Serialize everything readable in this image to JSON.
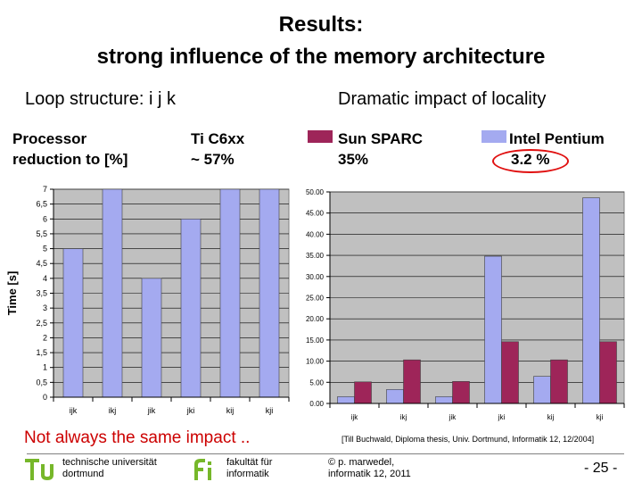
{
  "slide": {
    "title_line1": "Results:",
    "title_line2": "strong influence of the memory architecture",
    "subtitle_left": "Loop structure: i j k",
    "subtitle_right": "Dramatic impact of locality",
    "header": {
      "processor_line1": "Processor",
      "processor_line2": "reduction to [%]",
      "ti_line1": "Ti C6xx",
      "ti_line2": "~ 57%",
      "sparc_line1": "Sun SPARC",
      "sparc_line2": "35%",
      "pentium_line1": "Intel Pentium",
      "pentium_line2": "3.2 %"
    },
    "colors": {
      "blue": "#a4aaf0",
      "maroon": "#9e2559",
      "highlight": "#e01010"
    },
    "note": "Not always the same impact ..",
    "citation": "[Till Buchwald, Diploma thesis, Univ. Dortmund, Informatik 12, 12/2004]",
    "footer": {
      "tu_line1": "technische universität",
      "tu_line2": "dortmund",
      "fi_line1": "fakultät für",
      "fi_line2": "informatik",
      "author_line1": "© p. marwedel,",
      "author_line2": "informatik 12,  2011",
      "page": "-  25 -"
    }
  },
  "chart_data": [
    {
      "type": "bar",
      "ylabel": "Time [s]",
      "categories": [
        "ijk",
        "ikj",
        "jik",
        "jki",
        "kij",
        "kji"
      ],
      "series": [
        {
          "color": "#a4aaf0",
          "values": [
            5,
            7,
            4,
            6,
            7,
            7
          ]
        }
      ],
      "ylim": [
        0,
        7
      ],
      "yticks": [
        "0",
        "0,5",
        "1",
        "1,5",
        "2",
        "2,5",
        "3",
        "3,5",
        "4",
        "4,5",
        "5",
        "5,5",
        "6",
        "6,5",
        "7"
      ],
      "grid": true
    },
    {
      "type": "bar",
      "categories": [
        "ijk",
        "ikj",
        "jik",
        "jki",
        "kij",
        "kji"
      ],
      "series": [
        {
          "name": "Intel Pentium",
          "color": "#a4aaf0",
          "values": [
            1.6,
            3.3,
            1.6,
            34.8,
            6.4,
            48.6
          ]
        },
        {
          "name": "Sun SPARC",
          "color": "#9e2559",
          "values": [
            5.1,
            10.3,
            5.2,
            14.6,
            10.3,
            14.6
          ]
        }
      ],
      "ylim": [
        0,
        50
      ],
      "yticks": [
        "0.00",
        "5.00",
        "10.00",
        "15.00",
        "20.00",
        "25.00",
        "30.00",
        "35.00",
        "40.00",
        "45.00",
        "50.00"
      ],
      "grid": true
    }
  ]
}
